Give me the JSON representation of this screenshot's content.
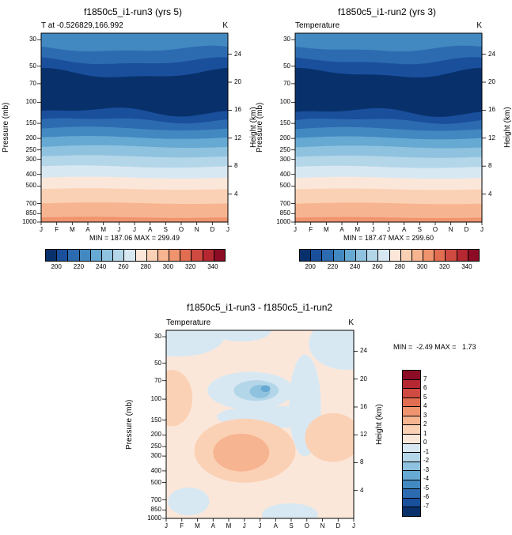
{
  "palette": [
    "#08316c",
    "#1a4f9c",
    "#2d6bb0",
    "#4289c2",
    "#66a9d2",
    "#8fc2de",
    "#b4d6e9",
    "#d8e8f2",
    "#fbe7da",
    "#fbd1b5",
    "#f7b490",
    "#ef946e",
    "#e26e52",
    "#cf4a40",
    "#b52832",
    "#8c0c25"
  ],
  "chart_data": [
    {
      "type": "filled-contour",
      "title": "f1850c5_i1-run3 (yrs 5)",
      "left_label": "T at -0.526829,166.992",
      "right_label": "K",
      "units": "K",
      "ylabel_left": "Pressure (mb)",
      "ylabel_right": "Height (km)",
      "y_scale": "log-pressure",
      "x_ticks": [
        "J",
        "F",
        "M",
        "A",
        "M",
        "J",
        "J",
        "A",
        "S",
        "O",
        "N",
        "D",
        "J"
      ],
      "pressure_ticks": [
        30,
        50,
        70,
        100,
        150,
        200,
        250,
        300,
        400,
        500,
        700,
        850,
        1000
      ],
      "height_ticks": [
        24,
        20,
        16,
        12,
        8,
        4
      ],
      "stats": "MIN = 187.06 MAX = 299.49",
      "colorbar_labels": [
        "200",
        "220",
        "240",
        "260",
        "280",
        "300",
        "320",
        "340"
      ],
      "bands": [
        {
          "color": 3,
          "top": 0
        },
        {
          "color": 2,
          "top": {
            "to": 0.085,
            "amp": 0.013,
            "phase": 0.15,
            "amp2": 0.006,
            "phase2": 0.55
          }
        },
        {
          "color": 1,
          "top": {
            "to": 0.15,
            "amp": 0.016,
            "phase": 0.2,
            "amp2": 0.007,
            "phase2": 0.6
          }
        },
        {
          "color": 0,
          "top": {
            "to": 0.215,
            "amp": 0.022,
            "phase": 0.25,
            "amp2": 0.009,
            "phase2": 0.65
          }
        },
        {
          "color": 1,
          "top": {
            "to": 0.415,
            "amp": 0.018,
            "phase": 0.55,
            "amp2": 0.01,
            "phase2": 0.1
          }
        },
        {
          "color": 2,
          "top": {
            "to": 0.46,
            "amp": 0.012,
            "phase": 0.52,
            "amp2": 0.006,
            "phase2": 0.15
          }
        },
        {
          "color": 3,
          "top": {
            "to": 0.505,
            "amp": 0.01,
            "phase": 0.5
          }
        },
        {
          "color": 4,
          "top": {
            "to": 0.552,
            "amp": 0.008,
            "phase": 0.5
          }
        },
        {
          "color": 5,
          "top": {
            "to": 0.6,
            "amp": 0.007,
            "phase": 0.55
          }
        },
        {
          "color": 6,
          "top": {
            "to": 0.652,
            "amp": 0.006,
            "phase": 0.5
          }
        },
        {
          "color": 7,
          "top": {
            "to": 0.706,
            "amp": 0.006,
            "phase": 0.45
          }
        },
        {
          "color": 8,
          "top": {
            "to": 0.765,
            "amp": 0.005,
            "phase": 0.5
          }
        },
        {
          "color": 9,
          "top": {
            "to": 0.825,
            "amp": 0.004,
            "phase": 0.5
          }
        },
        {
          "color": 10,
          "top": {
            "to": 0.9,
            "amp": 0.004,
            "phase": 0.55
          }
        },
        {
          "color": 11,
          "top": {
            "to": 0.975,
            "amp": 0.003,
            "phase": 0.5
          }
        }
      ]
    },
    {
      "type": "filled-contour",
      "title": "f1850c5_i1-run2 (yrs 3)",
      "left_label": "Temperature",
      "right_label": "K",
      "units": "K",
      "ylabel_left": "Pressure (mb)",
      "ylabel_right": "Height (km)",
      "y_scale": "log-pressure",
      "x_ticks": [
        "J",
        "F",
        "M",
        "A",
        "M",
        "J",
        "J",
        "A",
        "S",
        "O",
        "N",
        "D",
        "J"
      ],
      "pressure_ticks": [
        30,
        50,
        70,
        100,
        150,
        200,
        250,
        300,
        400,
        500,
        700,
        850,
        1000
      ],
      "height_ticks": [
        24,
        20,
        16,
        12,
        8,
        4
      ],
      "stats": "MIN = 187.47 MAX = 299.60",
      "colorbar_labels": [
        "200",
        "220",
        "240",
        "260",
        "280",
        "300",
        "320",
        "340"
      ],
      "bands": [
        {
          "color": 3,
          "top": 0
        },
        {
          "color": 2,
          "top": {
            "to": 0.083,
            "amp": 0.012,
            "phase": 0.2,
            "amp2": 0.006,
            "phase2": 0.5
          }
        },
        {
          "color": 1,
          "top": {
            "to": 0.148,
            "amp": 0.015,
            "phase": 0.25,
            "amp2": 0.007,
            "phase2": 0.55
          }
        },
        {
          "color": 0,
          "top": {
            "to": 0.212,
            "amp": 0.021,
            "phase": 0.3,
            "amp2": 0.009,
            "phase2": 0.6
          }
        },
        {
          "color": 1,
          "top": {
            "to": 0.418,
            "amp": 0.017,
            "phase": 0.58,
            "amp2": 0.01,
            "phase2": 0.12
          }
        },
        {
          "color": 2,
          "top": {
            "to": 0.462,
            "amp": 0.012,
            "phase": 0.54,
            "amp2": 0.006,
            "phase2": 0.18
          }
        },
        {
          "color": 3,
          "top": {
            "to": 0.507,
            "amp": 0.01,
            "phase": 0.52
          }
        },
        {
          "color": 4,
          "top": {
            "to": 0.554,
            "amp": 0.008,
            "phase": 0.52
          }
        },
        {
          "color": 5,
          "top": {
            "to": 0.602,
            "amp": 0.007,
            "phase": 0.56
          }
        },
        {
          "color": 6,
          "top": {
            "to": 0.654,
            "amp": 0.006,
            "phase": 0.52
          }
        },
        {
          "color": 7,
          "top": {
            "to": 0.708,
            "amp": 0.006,
            "phase": 0.47
          }
        },
        {
          "color": 8,
          "top": {
            "to": 0.766,
            "amp": 0.005,
            "phase": 0.52
          }
        },
        {
          "color": 9,
          "top": {
            "to": 0.826,
            "amp": 0.004,
            "phase": 0.52
          }
        },
        {
          "color": 10,
          "top": {
            "to": 0.901,
            "amp": 0.004,
            "phase": 0.56
          }
        },
        {
          "color": 11,
          "top": {
            "to": 0.976,
            "amp": 0.003,
            "phase": 0.52
          }
        }
      ]
    },
    {
      "type": "filled-contour-difference",
      "title": "f1850c5_i1-run3 - f1850c5_i1-run2",
      "left_label": "Temperature",
      "right_label": "K",
      "units": "K",
      "ylabel_left": "Pressure (mb)",
      "ylabel_right": "Height (km)",
      "y_scale": "log-pressure",
      "x_ticks": [
        "J",
        "F",
        "M",
        "A",
        "M",
        "J",
        "J",
        "A",
        "S",
        "O",
        "N",
        "D",
        "J"
      ],
      "pressure_ticks": [
        30,
        50,
        70,
        100,
        150,
        200,
        250,
        300,
        400,
        500,
        700,
        850,
        1000
      ],
      "height_ticks": [
        24,
        20,
        16,
        12,
        8,
        4
      ],
      "stats": "MIN =  -2.49 MAX =   1.73",
      "colorbar_labels": [
        "7",
        "6",
        "5",
        "4",
        "3",
        "2",
        "1",
        "0",
        "-1",
        "-2",
        "-3",
        "-4",
        "-5",
        "-6",
        "-7"
      ],
      "background_color": 8,
      "patches": [
        {
          "x": 0.07,
          "y": 0.03,
          "rx": 0.24,
          "ry": 0.11,
          "c": 7
        },
        {
          "x": 0.4,
          "y": 0.0,
          "rx": 0.16,
          "ry": 0.06,
          "c": 7
        },
        {
          "x": 0.96,
          "y": 0.07,
          "rx": 0.2,
          "ry": 0.14,
          "c": 7
        },
        {
          "x": 0.03,
          "y": 0.36,
          "rx": 0.11,
          "ry": 0.15,
          "c": 9
        },
        {
          "x": 0.45,
          "y": 0.32,
          "rx": 0.23,
          "ry": 0.1,
          "c": 7
        },
        {
          "x": 0.48,
          "y": 0.32,
          "rx": 0.12,
          "ry": 0.055,
          "c": 6
        },
        {
          "x": 0.5,
          "y": 0.325,
          "rx": 0.055,
          "ry": 0.035,
          "c": 5
        },
        {
          "x": 0.53,
          "y": 0.31,
          "rx": 0.025,
          "ry": 0.018,
          "c": 4
        },
        {
          "x": 0.74,
          "y": 0.4,
          "rx": 0.085,
          "ry": 0.27,
          "c": 7
        },
        {
          "x": 0.55,
          "y": 0.46,
          "rx": 0.28,
          "ry": 0.06,
          "c": 7
        },
        {
          "x": 0.42,
          "y": 0.64,
          "rx": 0.27,
          "ry": 0.17,
          "c": 9
        },
        {
          "x": 0.4,
          "y": 0.65,
          "rx": 0.15,
          "ry": 0.1,
          "c": 10
        },
        {
          "x": 0.89,
          "y": 0.57,
          "rx": 0.15,
          "ry": 0.13,
          "c": 9
        },
        {
          "x": 0.12,
          "y": 0.91,
          "rx": 0.11,
          "ry": 0.075,
          "c": 7
        },
        {
          "x": 0.66,
          "y": 0.98,
          "rx": 0.15,
          "ry": 0.06,
          "c": 7
        }
      ]
    }
  ]
}
